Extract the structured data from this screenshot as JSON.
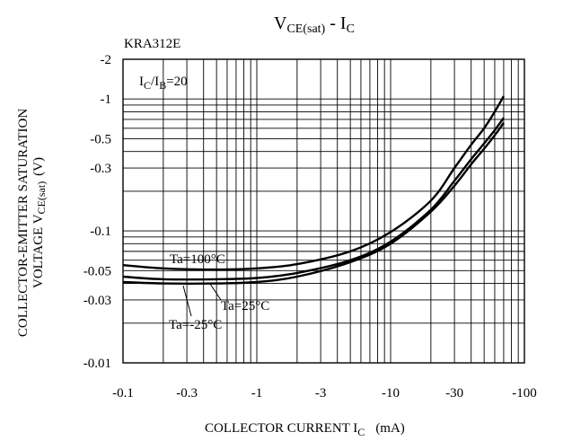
{
  "chart_data": {
    "type": "line",
    "title_main": "V",
    "title_main_sub": "CE(sat)",
    "title_sep": " - ",
    "title_ic": "I",
    "title_ic_sub": "C",
    "part_number": "KRA312E",
    "condition_main": "I",
    "condition_sub1": "C",
    "condition_slash": "/I",
    "condition_sub2": "B",
    "condition_value": "=20",
    "xlabel_main": "COLLECTOR CURRENT I",
    "xlabel_sub": "C",
    "xlabel_unit": "(mA)",
    "ylabel_line1": "COLLECTOR-EMITTER SATURATION",
    "ylabel_line2_main": "VOLTAGE V",
    "ylabel_line2_sub": "CE(sat)",
    "ylabel_line2_unit": "(V)",
    "x_scale": "log",
    "y_scale": "log",
    "xlim": [
      -0.1,
      -100
    ],
    "ylim": [
      -0.01,
      -2
    ],
    "grid": true,
    "x_ticks": [
      {
        "v": -0.1,
        "label": "-0.1"
      },
      {
        "v": -0.3,
        "label": "-0.3"
      },
      {
        "v": -1,
        "label": "-1"
      },
      {
        "v": -3,
        "label": "-3"
      },
      {
        "v": -10,
        "label": "-10"
      },
      {
        "v": -30,
        "label": "-30"
      },
      {
        "v": -100,
        "label": "-100"
      }
    ],
    "y_ticks": [
      {
        "v": -2,
        "label": "-2"
      },
      {
        "v": -1,
        "label": "-1"
      },
      {
        "v": -0.5,
        "label": "-0.5"
      },
      {
        "v": -0.3,
        "label": "-0.3"
      },
      {
        "v": -0.1,
        "label": "-0.1"
      },
      {
        "v": -0.05,
        "label": "-0.05"
      },
      {
        "v": -0.03,
        "label": "-0.03"
      },
      {
        "v": -0.01,
        "label": "-0.01"
      }
    ],
    "series": [
      {
        "name": "Ta=100°C",
        "x": [
          -0.1,
          -0.2,
          -0.5,
          -1,
          -2,
          -5,
          -10,
          -20,
          -30,
          -40,
          -50,
          -60,
          -70
        ],
        "y": [
          -0.055,
          -0.052,
          -0.051,
          -0.052,
          -0.056,
          -0.07,
          -0.098,
          -0.17,
          -0.3,
          -0.45,
          -0.6,
          -0.8,
          -1.05
        ]
      },
      {
        "name": "Ta=25°C",
        "x": [
          -0.1,
          -0.2,
          -0.5,
          -1,
          -2,
          -5,
          -10,
          -20,
          -30,
          -40,
          -50,
          -60,
          -70
        ],
        "y": [
          -0.045,
          -0.043,
          -0.043,
          -0.044,
          -0.048,
          -0.06,
          -0.083,
          -0.145,
          -0.24,
          -0.35,
          -0.46,
          -0.58,
          -0.72
        ]
      },
      {
        "name": "Ta=-25°C",
        "x": [
          -0.1,
          -0.2,
          -0.5,
          -1,
          -2,
          -5,
          -10,
          -20,
          -30,
          -40,
          -50,
          -60,
          -70
        ],
        "y": [
          -0.041,
          -0.04,
          -0.04,
          -0.041,
          -0.045,
          -0.058,
          -0.08,
          -0.14,
          -0.22,
          -0.32,
          -0.42,
          -0.53,
          -0.66
        ]
      }
    ]
  }
}
